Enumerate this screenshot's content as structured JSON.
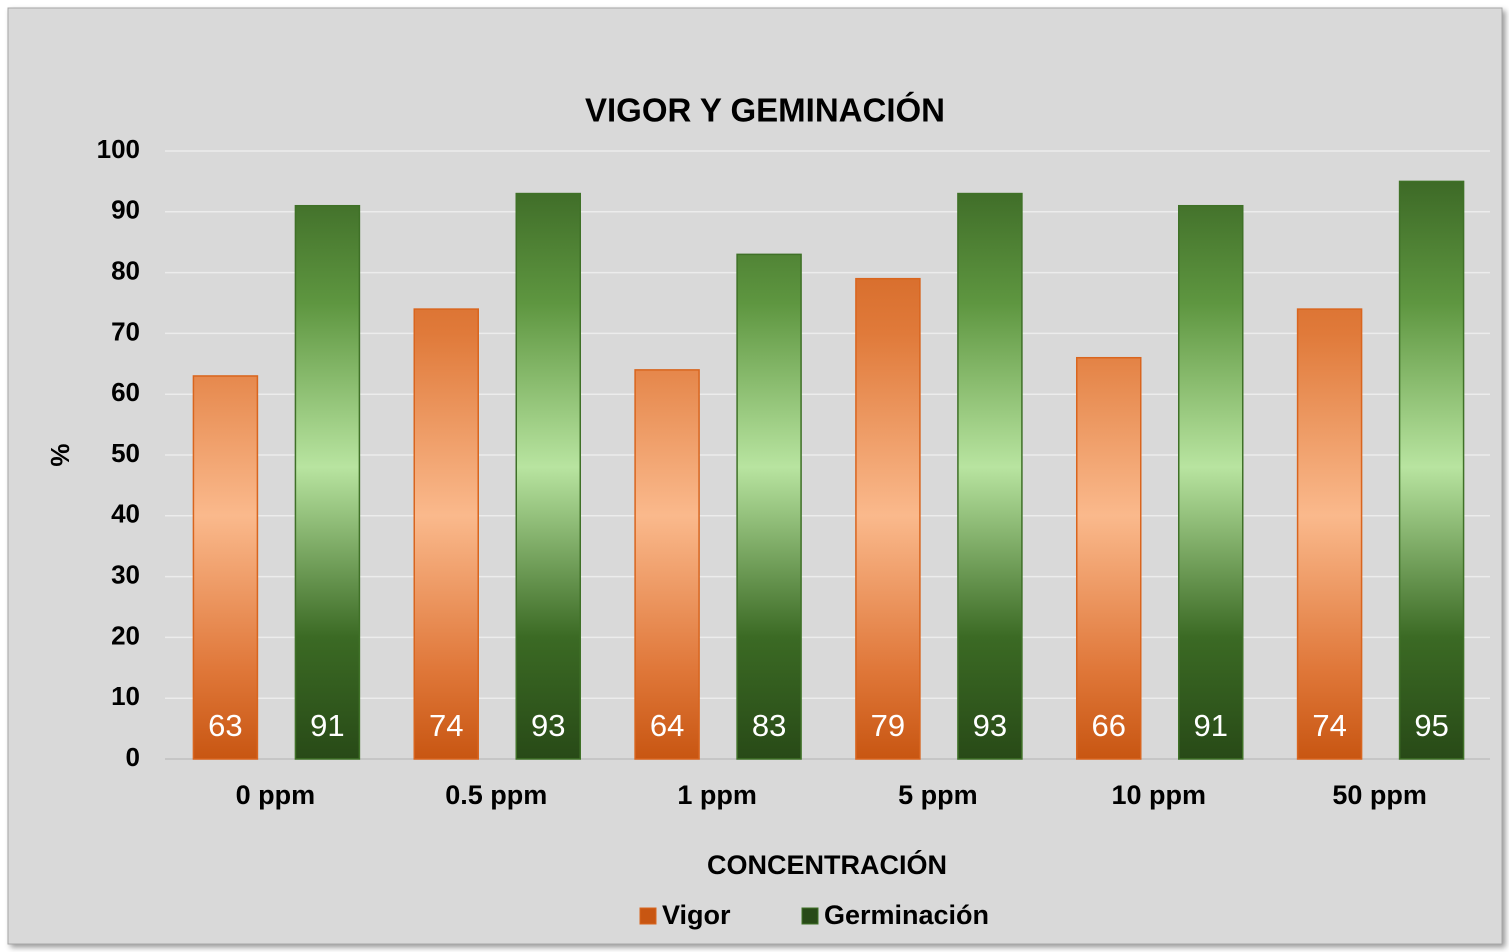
{
  "chart_data": {
    "type": "bar",
    "title": "VIGOR Y GEMINACIÓN",
    "x_label": "CONCENTRACIÓN",
    "y_label": "%",
    "categories": [
      "0 ppm",
      "0.5 ppm",
      "1 ppm",
      "5 ppm",
      "10 ppm",
      "50 ppm"
    ],
    "series": [
      {
        "name": "Vigor",
        "color": "#d9651e",
        "values": [
          63,
          74,
          64,
          79,
          66,
          74
        ]
      },
      {
        "name": "Germinación",
        "color": "#3f7127",
        "values": [
          91,
          93,
          83,
          93,
          91,
          95
        ]
      }
    ],
    "ylim": [
      0,
      100
    ],
    "yticks": [
      0,
      10,
      20,
      30,
      40,
      50,
      60,
      70,
      80,
      90,
      100
    ],
    "grid": true,
    "legend": "bottom"
  }
}
